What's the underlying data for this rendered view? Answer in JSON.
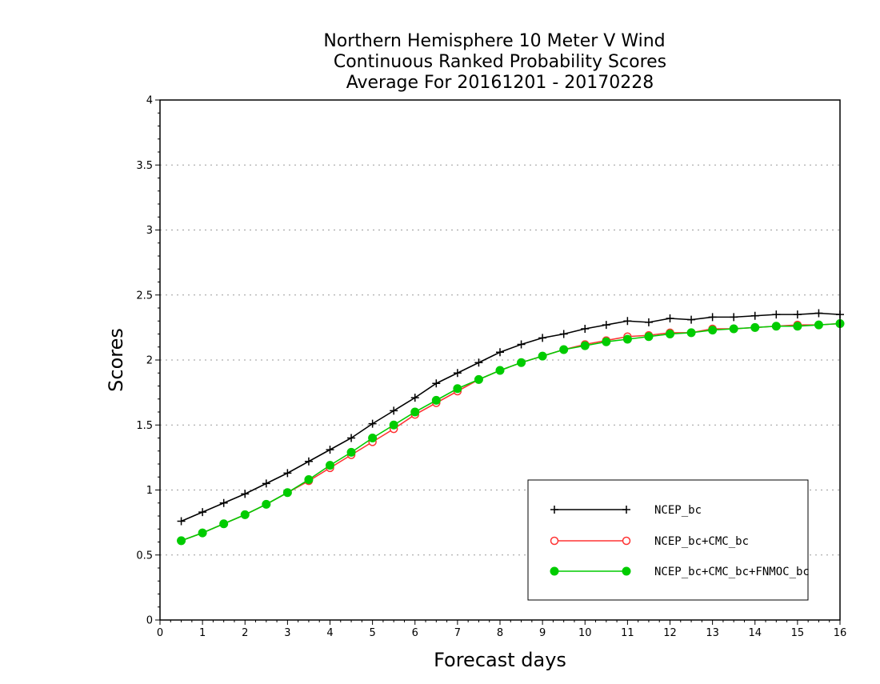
{
  "chart_data": {
    "type": "line",
    "title_lines": [
      "Northern Hemisphere 10 Meter V Wind",
      "Continuous Ranked Probability Scores",
      "Average For 20161201 - 20170228"
    ],
    "xlabel": "Forecast days",
    "ylabel": "Scores",
    "xlim": [
      0,
      16
    ],
    "ylim": [
      0,
      4
    ],
    "x_ticks": [
      "0",
      "1",
      "2",
      "3",
      "4",
      "5",
      "6",
      "7",
      "8",
      "9",
      "10",
      "11",
      "12",
      "13",
      "14",
      "15",
      "16"
    ],
    "y_ticks": [
      "0",
      "0.5",
      "1",
      "1.5",
      "2",
      "2.5",
      "3",
      "3.5",
      "4"
    ],
    "grid": "horizontal dotted",
    "legend_position": "bottom-right",
    "x": [
      0.5,
      1,
      1.5,
      2,
      2.5,
      3,
      3.5,
      4,
      4.5,
      5,
      5.5,
      6,
      6.5,
      7,
      7.5,
      8,
      8.5,
      9,
      9.5,
      10,
      10.5,
      11,
      11.5,
      12,
      12.5,
      13,
      13.5,
      14,
      14.5,
      15,
      15.5,
      16
    ],
    "series": [
      {
        "name": "NCEP_bc",
        "color": "#000000",
        "marker": "plus",
        "values": [
          0.76,
          0.83,
          0.9,
          0.97,
          1.05,
          1.13,
          1.22,
          1.31,
          1.4,
          1.51,
          1.61,
          1.71,
          1.82,
          1.9,
          1.98,
          2.06,
          2.12,
          2.17,
          2.2,
          2.24,
          2.27,
          2.3,
          2.29,
          2.32,
          2.31,
          2.33,
          2.33,
          2.34,
          2.35,
          2.35,
          2.36,
          2.35
        ]
      },
      {
        "name": "NCEP_bc+CMC_bc",
        "color": "#ff3333",
        "marker": "open-circle",
        "values": [
          0.61,
          0.67,
          0.74,
          0.81,
          0.89,
          0.98,
          1.07,
          1.17,
          1.27,
          1.37,
          1.47,
          1.58,
          1.67,
          1.76,
          1.85,
          1.92,
          1.98,
          2.03,
          2.08,
          2.12,
          2.15,
          2.18,
          2.19,
          2.21,
          2.21,
          2.24,
          2.24,
          2.25,
          2.26,
          2.27,
          2.27,
          2.28
        ]
      },
      {
        "name": "NCEP_bc+CMC_bc+FNMOC_bc",
        "color": "#00cc00",
        "marker": "filled-circle",
        "values": [
          0.61,
          0.67,
          0.74,
          0.81,
          0.89,
          0.98,
          1.08,
          1.19,
          1.29,
          1.4,
          1.5,
          1.6,
          1.69,
          1.78,
          1.85,
          1.92,
          1.98,
          2.03,
          2.08,
          2.11,
          2.14,
          2.16,
          2.18,
          2.2,
          2.21,
          2.23,
          2.24,
          2.25,
          2.26,
          2.26,
          2.27,
          2.28
        ]
      }
    ]
  }
}
